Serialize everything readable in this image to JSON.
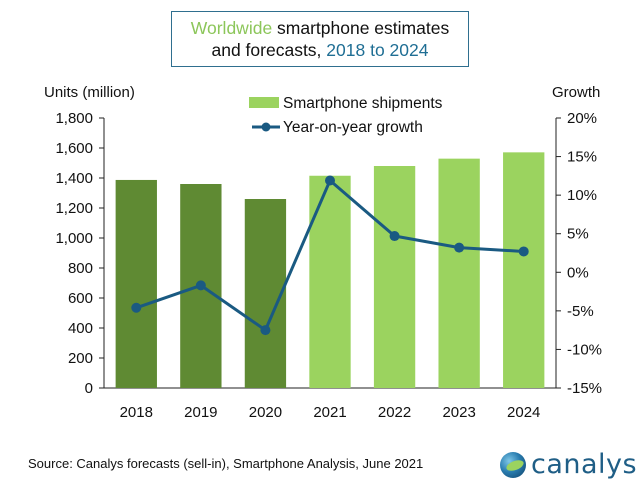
{
  "title": {
    "part1": "Worldwide",
    "part2": " smartphone estimates",
    "part3": "and forecasts, ",
    "part4": "2018 to 2024"
  },
  "source": "Source: Canalys forecasts (sell-in), Smartphone Analysis, June 2021",
  "logo": {
    "text": "canalys",
    "icon": "globe-icon"
  },
  "colors": {
    "actual_bar": "#5f8a33",
    "forecast_bar": "#9bd35f",
    "growth_line": "#1a5a82",
    "title_green": "#8cc65a",
    "title_blue": "#1f6e94"
  },
  "chart_data": {
    "type": "bar",
    "title": "Worldwide smartphone estimates and forecasts, 2018 to 2024",
    "categories": [
      "2018",
      "2019",
      "2020",
      "2021",
      "2022",
      "2023",
      "2024"
    ],
    "series": [
      {
        "name": "Smartphone shipments",
        "type": "bar",
        "axis": "left",
        "values": [
          1387,
          1360,
          1260,
          1415,
          1480,
          1529,
          1571
        ],
        "forecast_from_index": 3
      },
      {
        "name": "Year-on-year growth",
        "type": "line",
        "axis": "right",
        "values": [
          -4.6,
          -1.7,
          -7.5,
          11.9,
          4.7,
          3.2,
          2.7
        ]
      }
    ],
    "ylabel": "Units (million)",
    "ylabel_right": "Growth",
    "ylim": [
      0,
      1800
    ],
    "ylim_right": [
      -15,
      20
    ],
    "yticks": [
      "0",
      "200",
      "400",
      "600",
      "800",
      "1,000",
      "1,200",
      "1,400",
      "1,600",
      "1,800"
    ],
    "yticks_right": [
      "-15%",
      "-10%",
      "-5%",
      "0%",
      "5%",
      "10%",
      "15%",
      "20%"
    ],
    "legend": [
      "Smartphone shipments",
      "Year-on-year growth"
    ],
    "legend_position": "top-center",
    "grid": false
  }
}
